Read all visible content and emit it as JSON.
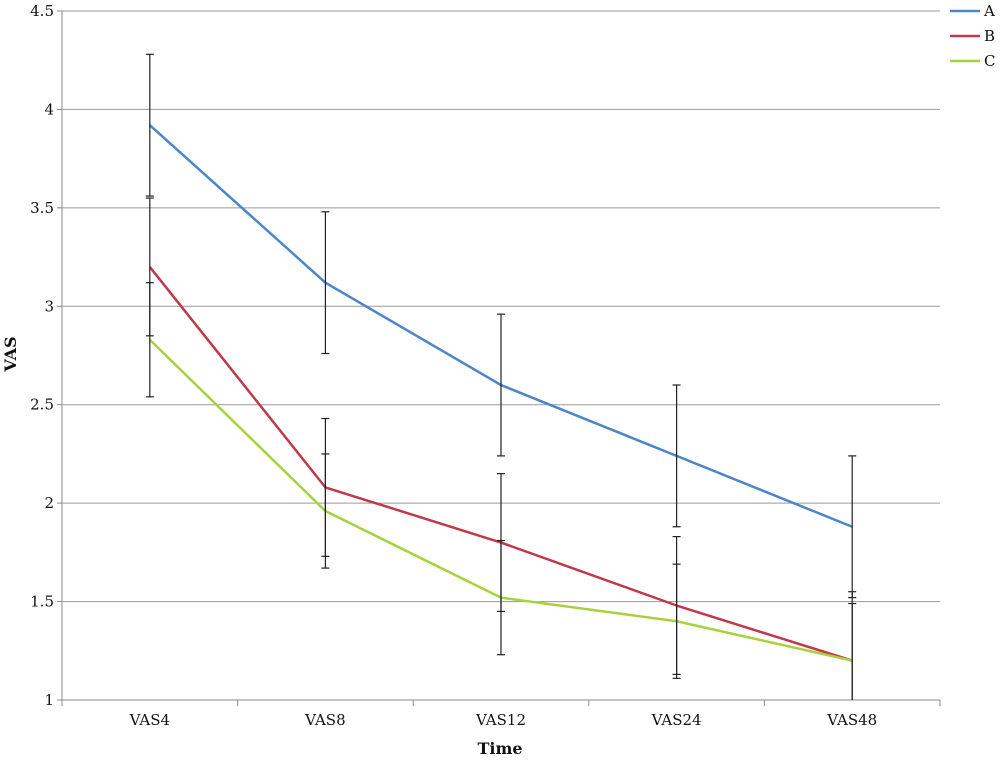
{
  "chart_data": {
    "type": "line",
    "title": "",
    "xlabel": "Time",
    "ylabel": "VAS",
    "categories": [
      "VAS4",
      "VAS8",
      "VAS12",
      "VAS24",
      "VAS48"
    ],
    "ylim": [
      1,
      4.5
    ],
    "yticks": [
      "1",
      "1.5",
      "2",
      "2.5",
      "3",
      "3.5",
      "4",
      "4.5"
    ],
    "grid": "horizontal",
    "legend_position": "top-right",
    "series": [
      {
        "name": "A",
        "color": "#4a86c8",
        "values": [
          3.92,
          3.12,
          2.6,
          2.24,
          1.88
        ],
        "errors": [
          0.36,
          0.36,
          0.36,
          0.36,
          0.36
        ]
      },
      {
        "name": "B",
        "color": "#c0394a",
        "values": [
          3.2,
          2.08,
          1.8,
          1.48,
          1.2
        ],
        "errors": [
          0.35,
          0.35,
          0.35,
          0.35,
          0.35
        ]
      },
      {
        "name": "C",
        "color": "#a8d23c",
        "values": [
          2.83,
          1.96,
          1.52,
          1.4,
          1.2
        ],
        "errors": [
          0.29,
          0.29,
          0.29,
          0.29,
          0.29
        ]
      }
    ]
  }
}
